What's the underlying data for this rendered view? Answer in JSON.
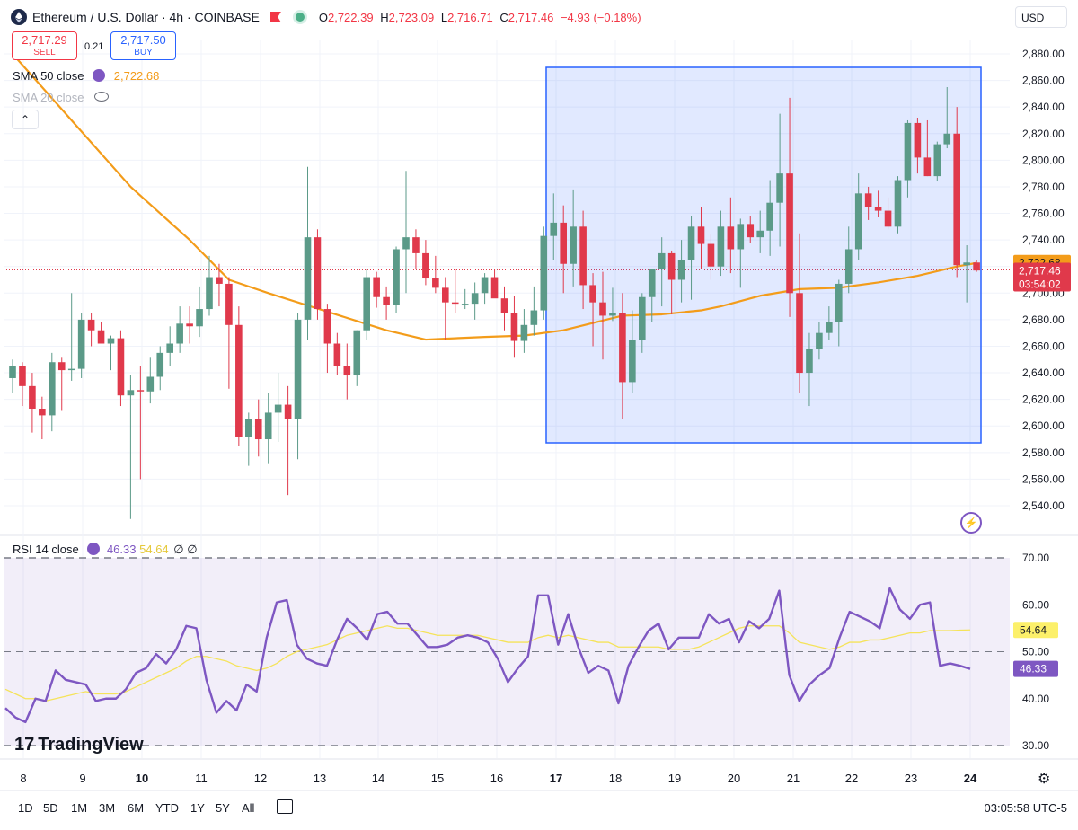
{
  "header": {
    "title": "Ethereum / U.S. Dollar · 4h · COINBASE",
    "ohlc": [
      {
        "k": "O",
        "v": "2,722.39"
      },
      {
        "k": "H",
        "v": "2,723.09"
      },
      {
        "k": "L",
        "v": "2,716.71"
      },
      {
        "k": "C",
        "v": "2,717.46"
      }
    ],
    "change": "−4.93 (−0.18%)",
    "currency": "USD"
  },
  "trade": {
    "sell_price": "2,717.29",
    "sell_label": "SELL",
    "buy_price": "2,717.50",
    "buy_label": "BUY",
    "spread": "0.21"
  },
  "indicators": {
    "sma50_label": "SMA 50 close",
    "sma50_value": "2,722.68",
    "sma20_label": "SMA 20 close",
    "rsi_label": "RSI 14 close",
    "rsi_value": "46.33",
    "rsi_ma_value": "54.64",
    "rsi_extra": "∅ ∅"
  },
  "price_tags": {
    "sma": "2,722.68",
    "last": "2,717.46",
    "countdown": "03:54:02"
  },
  "rsi_tags": {
    "ma": "54.64",
    "rsi": "46.33"
  },
  "watermark": "TradingView",
  "toolbar": {
    "timeframes": [
      "1D",
      "5D",
      "1M",
      "3M",
      "6M",
      "YTD",
      "1Y",
      "5Y",
      "All"
    ],
    "clock": "03:05:58 UTC-5"
  },
  "colors": {
    "up": "#5b9a88",
    "down": "#e0394b",
    "sma": "#f39c1a",
    "rsi": "#7e57c2",
    "rsi_ma": "#f5e35a",
    "box": "#2962ff"
  },
  "chart_data": [
    {
      "type": "candlestick",
      "title": "Ethereum / U.S. Dollar · 4h · COINBASE",
      "x_tick_labels": [
        "8",
        "9",
        "10",
        "11",
        "12",
        "13",
        "14",
        "15",
        "16",
        "17",
        "18",
        "19",
        "20",
        "21",
        "22",
        "23",
        "24"
      ],
      "ylim": [
        2520,
        2890
      ],
      "y_ticks": [
        2540,
        2560,
        2580,
        2600,
        2620,
        2640,
        2660,
        2680,
        2700,
        2720,
        2740,
        2760,
        2780,
        2800,
        2820,
        2840,
        2860,
        2880
      ],
      "candles_ohlc": [
        [
          2636,
          2650,
          2625,
          2645
        ],
        [
          2645,
          2648,
          2615,
          2630
        ],
        [
          2630,
          2640,
          2595,
          2613
        ],
        [
          2613,
          2622,
          2590,
          2608
        ],
        [
          2608,
          2655,
          2596,
          2648
        ],
        [
          2648,
          2652,
          2612,
          2642
        ],
        [
          2642,
          2700,
          2634,
          2643
        ],
        [
          2643,
          2685,
          2636,
          2680
        ],
        [
          2680,
          2685,
          2660,
          2672
        ],
        [
          2672,
          2678,
          2662,
          2662
        ],
        [
          2662,
          2668,
          2642,
          2666
        ],
        [
          2666,
          2672,
          2615,
          2623
        ],
        [
          2623,
          2638,
          2530,
          2627
        ],
        [
          2627,
          2645,
          2560,
          2626
        ],
        [
          2626,
          2652,
          2617,
          2637
        ],
        [
          2637,
          2660,
          2627,
          2655
        ],
        [
          2655,
          2675,
          2645,
          2662
        ],
        [
          2662,
          2690,
          2655,
          2677
        ],
        [
          2677,
          2690,
          2662,
          2675
        ],
        [
          2675,
          2705,
          2667,
          2688
        ],
        [
          2688,
          2728,
          2683,
          2712
        ],
        [
          2712,
          2722,
          2690,
          2707
        ],
        [
          2707,
          2712,
          2628,
          2676
        ],
        [
          2676,
          2690,
          2585,
          2592
        ],
        [
          2592,
          2610,
          2570,
          2605
        ],
        [
          2605,
          2620,
          2577,
          2590
        ],
        [
          2590,
          2625,
          2572,
          2610
        ],
        [
          2610,
          2640,
          2588,
          2616
        ],
        [
          2616,
          2630,
          2548,
          2605
        ],
        [
          2605,
          2685,
          2575,
          2680
        ],
        [
          2680,
          2795,
          2665,
          2742
        ],
        [
          2742,
          2748,
          2680,
          2688
        ],
        [
          2688,
          2692,
          2640,
          2662
        ],
        [
          2662,
          2670,
          2638,
          2645
        ],
        [
          2645,
          2662,
          2620,
          2638
        ],
        [
          2638,
          2672,
          2630,
          2672
        ],
        [
          2672,
          2718,
          2665,
          2712
        ],
        [
          2712,
          2716,
          2689,
          2697
        ],
        [
          2697,
          2705,
          2680,
          2691
        ],
        [
          2691,
          2735,
          2685,
          2733
        ],
        [
          2733,
          2792,
          2700,
          2742
        ],
        [
          2742,
          2748,
          2718,
          2730
        ],
        [
          2730,
          2740,
          2706,
          2711
        ],
        [
          2711,
          2728,
          2700,
          2704
        ],
        [
          2704,
          2712,
          2665,
          2693
        ],
        [
          2693,
          2718,
          2685,
          2692
        ],
        [
          2692,
          2703,
          2688,
          2692
        ],
        [
          2692,
          2708,
          2680,
          2700
        ],
        [
          2700,
          2715,
          2692,
          2712
        ],
        [
          2712,
          2718,
          2697,
          2696
        ],
        [
          2696,
          2705,
          2672,
          2685
        ],
        [
          2685,
          2698,
          2652,
          2664
        ],
        [
          2664,
          2688,
          2655,
          2676
        ],
        [
          2676,
          2705,
          2668,
          2687
        ],
        [
          2687,
          2750,
          2680,
          2743
        ],
        [
          2743,
          2775,
          2725,
          2753
        ],
        [
          2753,
          2766,
          2700,
          2722
        ],
        [
          2722,
          2778,
          2705,
          2750
        ],
        [
          2750,
          2762,
          2688,
          2706
        ],
        [
          2706,
          2715,
          2660,
          2693
        ],
        [
          2693,
          2716,
          2650,
          2683
        ],
        [
          2683,
          2704,
          2679,
          2685
        ],
        [
          2685,
          2700,
          2605,
          2633
        ],
        [
          2633,
          2687,
          2625,
          2665
        ],
        [
          2665,
          2700,
          2655,
          2697
        ],
        [
          2697,
          2713,
          2678,
          2718
        ],
        [
          2718,
          2742,
          2690,
          2730
        ],
        [
          2730,
          2732,
          2684,
          2710
        ],
        [
          2710,
          2740,
          2693,
          2725
        ],
        [
          2725,
          2758,
          2695,
          2750
        ],
        [
          2750,
          2765,
          2718,
          2737
        ],
        [
          2737,
          2744,
          2710,
          2720
        ],
        [
          2720,
          2762,
          2713,
          2750
        ],
        [
          2750,
          2772,
          2715,
          2733
        ],
        [
          2733,
          2756,
          2704,
          2752
        ],
        [
          2752,
          2758,
          2738,
          2742
        ],
        [
          2742,
          2762,
          2730,
          2747
        ],
        [
          2747,
          2785,
          2728,
          2768
        ],
        [
          2768,
          2835,
          2735,
          2790
        ],
        [
          2790,
          2847,
          2682,
          2700
        ],
        [
          2700,
          2745,
          2625,
          2640
        ],
        [
          2640,
          2670,
          2615,
          2658
        ],
        [
          2658,
          2678,
          2650,
          2670
        ],
        [
          2670,
          2690,
          2665,
          2678
        ],
        [
          2678,
          2710,
          2660,
          2707
        ],
        [
          2707,
          2750,
          2700,
          2733
        ],
        [
          2733,
          2790,
          2725,
          2775
        ],
        [
          2775,
          2780,
          2755,
          2765
        ],
        [
          2765,
          2777,
          2757,
          2762
        ],
        [
          2762,
          2772,
          2748,
          2750
        ],
        [
          2750,
          2788,
          2745,
          2785
        ],
        [
          2785,
          2830,
          2772,
          2828
        ],
        [
          2828,
          2832,
          2790,
          2802
        ],
        [
          2802,
          2830,
          2788,
          2788
        ],
        [
          2788,
          2814,
          2784,
          2812
        ],
        [
          2812,
          2855,
          2809,
          2820
        ],
        [
          2820,
          2840,
          2712,
          2721
        ],
        [
          2721,
          2736,
          2693,
          2723
        ],
        [
          2723,
          2725,
          2716,
          2717
        ]
      ],
      "sma50": [
        [
          0,
          2880
        ],
        [
          6,
          2830
        ],
        [
          12,
          2780
        ],
        [
          18,
          2740
        ],
        [
          22,
          2710
        ],
        [
          26,
          2700
        ],
        [
          32,
          2686
        ],
        [
          38,
          2672
        ],
        [
          42,
          2665
        ],
        [
          48,
          2667
        ],
        [
          52,
          2668
        ],
        [
          56,
          2672
        ],
        [
          62,
          2683
        ],
        [
          66,
          2684
        ],
        [
          70,
          2687
        ],
        [
          72,
          2690
        ],
        [
          76,
          2698
        ],
        [
          80,
          2703
        ],
        [
          84,
          2704
        ],
        [
          88,
          2708
        ],
        [
          92,
          2713
        ],
        [
          96,
          2720
        ],
        [
          98,
          2722.68
        ]
      ],
      "annotation": "Highlighted box region over candles 17–24"
    },
    {
      "type": "line",
      "title": "RSI 14 close",
      "ylim": [
        27,
        72
      ],
      "y_ticks": [
        30,
        40,
        50,
        60,
        70
      ],
      "series": [
        {
          "name": "RSI",
          "values": [
            38,
            36,
            35,
            40,
            39.5,
            46,
            44,
            43.5,
            43,
            39.5,
            40,
            40,
            42,
            45.5,
            46.5,
            49.5,
            47.5,
            50.5,
            55.5,
            55,
            44,
            37,
            39.5,
            37.5,
            43,
            41.5,
            53,
            60.5,
            61,
            51.5,
            48.5,
            47.5,
            47,
            52.5,
            57,
            55,
            52.5,
            58,
            58.5,
            56,
            56,
            53.5,
            51,
            51,
            51.5,
            53,
            53.5,
            53,
            52,
            48.5,
            43.5,
            46.5,
            49,
            62,
            62,
            51.5,
            58,
            51,
            45.5,
            47,
            46,
            39,
            47,
            51,
            54.5,
            56,
            50.5,
            53,
            53,
            53,
            58,
            56,
            57,
            52,
            56.5,
            55,
            57,
            63,
            45,
            39.5,
            43,
            45,
            46.5,
            53,
            58.5,
            57.5,
            56.5,
            55,
            63.5,
            59,
            57,
            60,
            60.5,
            47,
            47.5,
            47,
            46.33
          ]
        },
        {
          "name": "RSI-based MA",
          "values": [
            42,
            41,
            40,
            40,
            39.5,
            40,
            40.5,
            41,
            41.5,
            41,
            41,
            41,
            41.5,
            42.5,
            43.5,
            44.5,
            45.5,
            46.5,
            48,
            49,
            49,
            48.5,
            48,
            47,
            46.5,
            46,
            46.5,
            47.5,
            49,
            50,
            50.5,
            51,
            51.5,
            52.5,
            53.5,
            54,
            54.5,
            55,
            55.5,
            55,
            55,
            54.5,
            54,
            53.5,
            53.5,
            53.5,
            53.5,
            53.5,
            53,
            52.5,
            52,
            52,
            52,
            53,
            53.5,
            53,
            53.5,
            53,
            52.5,
            52,
            52,
            51,
            51,
            51,
            51,
            51,
            50.5,
            50.5,
            50.5,
            51,
            52,
            53,
            54,
            55,
            55.5,
            55.5,
            55.5,
            55.5,
            54,
            52,
            51.5,
            51,
            50.5,
            51,
            52,
            52,
            52.5,
            52.5,
            53,
            53.5,
            54,
            54,
            54.5,
            54.5,
            54.5,
            54.6,
            54.64
          ]
        }
      ],
      "bands": [
        30,
        50,
        70
      ]
    }
  ]
}
